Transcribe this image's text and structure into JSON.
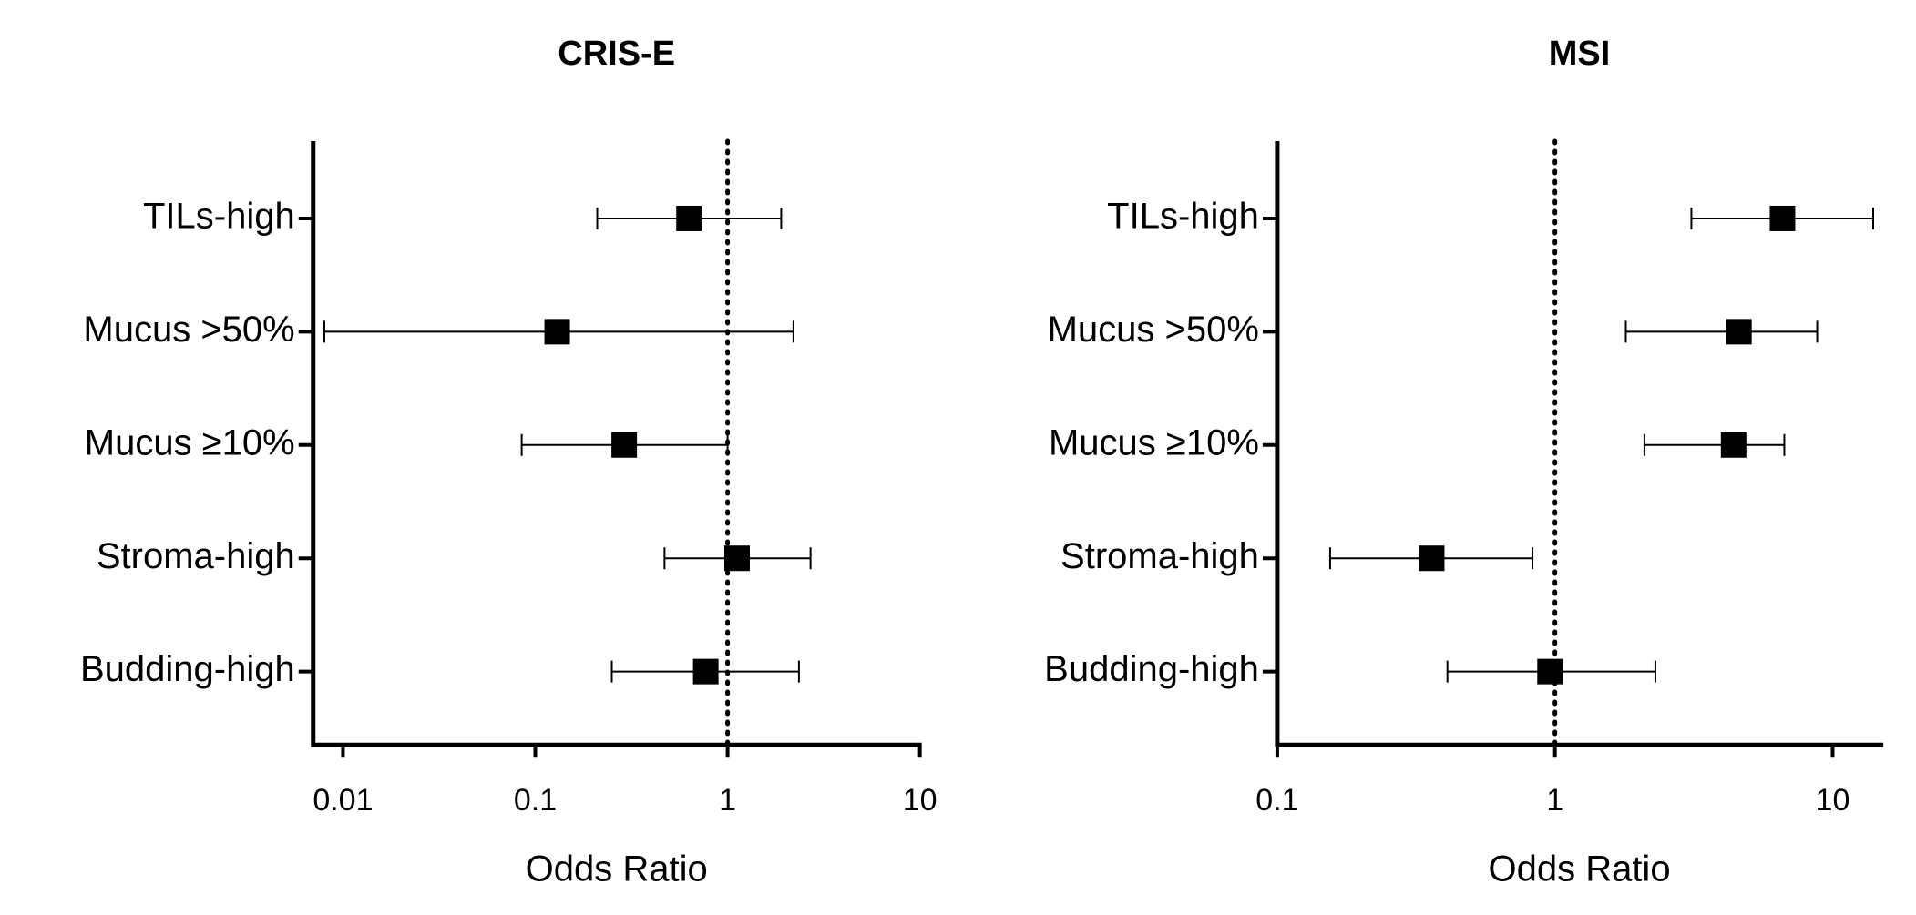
{
  "chart_data": [
    {
      "type": "forest",
      "title": "CRIS-E",
      "xlabel": "Odds Ratio",
      "categories": [
        "TILs-high",
        "Mucus >50%",
        "Mucus ≥10%",
        "Stroma-high",
        "Budding-high"
      ],
      "values": [
        0.63,
        0.13,
        0.29,
        1.12,
        0.77
      ],
      "lower": [
        0.21,
        0.008,
        0.085,
        0.47,
        0.25
      ],
      "upper": [
        1.9,
        2.2,
        1.0,
        2.7,
        2.35
      ],
      "xlim": [
        0.007,
        10
      ],
      "xticks": [
        0.01,
        0.1,
        1,
        10
      ],
      "log": true,
      "refline": 1,
      "color": "#000000"
    },
    {
      "type": "forest",
      "title": "MSI",
      "xlabel": "Odds Ratio",
      "categories": [
        "TILs-high",
        "Mucus >50%",
        "Mucus ≥10%",
        "Stroma-high",
        "Budding-high"
      ],
      "values": [
        6.6,
        4.6,
        4.4,
        0.36,
        0.96
      ],
      "lower": [
        3.1,
        1.8,
        2.1,
        0.155,
        0.41
      ],
      "upper": [
        14,
        8.8,
        6.7,
        0.83,
        2.3
      ],
      "xlim": [
        0.1,
        15
      ],
      "xticks": [
        0.1,
        1,
        10
      ],
      "log": true,
      "refline": 1,
      "color": "#000000"
    }
  ]
}
